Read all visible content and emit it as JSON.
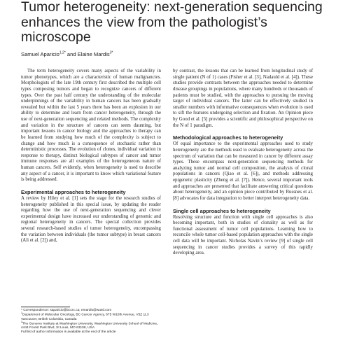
{
  "title": "Tumor heterogeneity: next-generation sequencing enhances the view from the pathologist’s microscope",
  "authors": {
    "author1": "Samuel Aparicio",
    "author1_sup": "1,2*",
    "and": "and",
    "author2": "Elaine Mardis",
    "author2_sup": "3*"
  },
  "left_column": {
    "intro_paragraphs": [
      "The term heterogeneity covers many aspects of the variability in tumor phenotypes, which are a characteristic of human malignancies. Morphologists of the late 19th century first described the multiple cell types composing tumors and began to recognize cancers of different types. Over the past half century the understanding of the molecular underpinnings of the variability in human cancers has been gradually revealed but within the last 5 years there has been an explosion in our ability to determine and learn from cancer heterogeneity, through the use of next-generation sequencing and related methods. The complexity and variation in the structure of cancers can seem daunting, but important lessons in cancer biology and the approaches to therapy can be learned from studying how much of the complexity is subject to change and how much is a consequence of stochastic rather than deterministic processes. The evolution of clones, individual variation in response to therapy, distinct biological subtypes of cancer and tumor immune responses are all examples of the heterogeneous nature of human cancers. Self evidently, when heterogeneity is used to describe any aspect of a cancer, it is important to know which variational feature is being addressed."
    ],
    "experimental_heading": "Experimental approaches to heterogeneity",
    "experimental_paragraph": "A review by Hiley et al. [1] sets the stage for the research studies of heterogeneity published in this special issue, by updating the reader regarding how the use of next-generation sequencing and clever experimental design have increased our understanding of genomic and regional heterogeneity in cancers. The special collection provides several research-based studies of tumor heterogeneity, encompassing the variation between individuals (the tumor subtype) in breast cancers (Ali et al. [2]) and,"
  },
  "right_column": {
    "continuation_paragraph": "by contrast, the lessons that can be learned from longitudinal study of single patient (N of 1) cases (Fisher et al. [3], Nadauld et al. [4]). These studies provide contrasts between the approaches needed to determine disease groupings in populations, where many hundreds or thousands of patients must be studied, with the approaches to pursuing the moving target of individual cancers. The latter can be effectively studied in smaller numbers with informative consequences when evolution is used to sift the features undergoing selection and fixation. An Opinion piece by Good et al. [5] provides a scientific and philosophical perspective on the N of 1 paradigm.",
    "methodological_heading": "Methodological approaches to heterogeneity",
    "methodological_paragraph": "Of equal importance to the experimental approaches used to study heterogeneity are the methods used to evaluate heterogeneity across the spectrum of variation that can be measured in cancer by different assay types. These encompass next-generation sequencing methods for analyzing tumor and normal cell composition, the analysis of clonal populations in cancers (Qiao et al. [6]), and methods addressing epigenetic plasticity (Zheng et al. [7]). Hence, several important tools and approaches are presented that facilitate answering critical questions about heterogeneity, and an opinion piece contributed by Russnes et al. [8] advocates for data integration to better interpret heterogeneity data.",
    "single_cell_heading": "Single cell approaches to heterogeneity",
    "single_cell_paragraph": "Resolving structure and function with single cell approaches is also becoming important, both in studies of clonality as well as for functional assessment of tumor cell populations. Learning how to reconcile whole tumor cell-based population approaches with the single cell data will be important. Nicholas Navin’s review [9] of single cell sequencing in cancer studies provides a survey of this rapidly developing area."
  },
  "footnotes": {
    "correspondence": "* Correspondence: saparicio@bccrc.ca; emardis@wustl.com",
    "affil1_sup": "1",
    "affil1": "Department of Molecular Oncology, BC Cancer Agency, 675 W10th Avenue, V5Z 1L3 Vancouver, British Columbia, Canada",
    "affil3_sup": "3",
    "affil3": "The Genome Institute at Washington University, Washington University School of Medicine, 4444 Forest Park Blvd, St Louis, MO 63108, USA",
    "more": "Full list of author information is available at the end of the article"
  }
}
